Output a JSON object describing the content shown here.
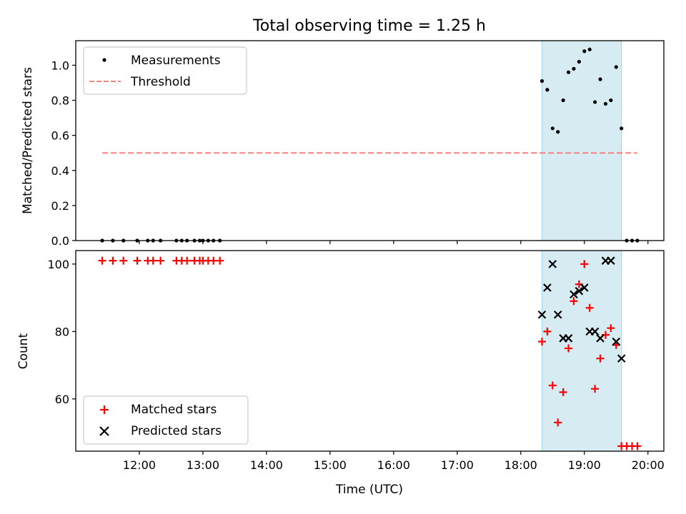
{
  "chart_data": [
    {
      "type": "scatter",
      "title": "Total observing time = 1.25 h",
      "xlabel": "",
      "ylabel": "Matched/Predicted stars",
      "x_unit": "hours UTC",
      "xlim": [
        "11:00",
        "20:15"
      ],
      "ylim": [
        0,
        1.14
      ],
      "yticks": [
        "0.0",
        "0.2",
        "0.4",
        "0.6",
        "0.8",
        "1.0"
      ],
      "highlight_span": {
        "from": "18:20",
        "to": "19:35",
        "color": "#add8e6"
      },
      "threshold": {
        "name": "Threshold",
        "value": 0.5,
        "from": "11:25",
        "to": "19:50",
        "color": "#ff7f7f"
      },
      "legend": {
        "placement": "upper-left",
        "entries": [
          "Measurements",
          "Threshold"
        ]
      },
      "series": [
        {
          "name": "Measurements",
          "marker": "dot",
          "color": "#000000",
          "points": [
            [
              "11:25",
              0
            ],
            [
              "11:35",
              0
            ],
            [
              "11:45",
              0
            ],
            [
              "11:58",
              0
            ],
            [
              "12:08",
              0
            ],
            [
              "12:13",
              0
            ],
            [
              "12:20",
              0
            ],
            [
              "12:35",
              0
            ],
            [
              "12:40",
              0
            ],
            [
              "12:45",
              0
            ],
            [
              "12:52",
              0
            ],
            [
              "12:57",
              0
            ],
            [
              "13:00",
              0
            ],
            [
              "13:05",
              0
            ],
            [
              "13:10",
              0
            ],
            [
              "13:16",
              0
            ],
            [
              "18:20",
              0.91
            ],
            [
              "18:25",
              0.86
            ],
            [
              "18:30",
              0.64
            ],
            [
              "18:35",
              0.62
            ],
            [
              "18:40",
              0.8
            ],
            [
              "18:45",
              0.96
            ],
            [
              "18:50",
              0.98
            ],
            [
              "18:55",
              1.02
            ],
            [
              "19:00",
              1.08
            ],
            [
              "19:05",
              1.09
            ],
            [
              "19:10",
              0.79
            ],
            [
              "19:15",
              0.92
            ],
            [
              "19:20",
              0.78
            ],
            [
              "19:25",
              0.8
            ],
            [
              "19:30",
              0.99
            ],
            [
              "19:35",
              0.64
            ],
            [
              "19:40",
              0
            ],
            [
              "19:45",
              0
            ],
            [
              "19:50",
              0
            ]
          ]
        }
      ]
    },
    {
      "type": "scatter",
      "title": "",
      "xlabel": "Time (UTC)",
      "ylabel": "Count",
      "xlim": [
        "11:00",
        "20:15"
      ],
      "ylim": [
        44.5,
        104
      ],
      "xticks": [
        "12:00",
        "13:00",
        "14:00",
        "15:00",
        "16:00",
        "17:00",
        "18:00",
        "19:00",
        "20:00"
      ],
      "yticks": [
        "60",
        "80",
        "100"
      ],
      "highlight_span": {
        "from": "18:20",
        "to": "19:35",
        "color": "#add8e6"
      },
      "legend": {
        "placement": "lower-left",
        "entries": [
          "Matched stars",
          "Predicted stars"
        ]
      },
      "series": [
        {
          "name": "Matched stars",
          "marker": "plus",
          "color": "#ff0000",
          "points": [
            [
              "11:25",
              101
            ],
            [
              "11:35",
              101
            ],
            [
              "11:45",
              101
            ],
            [
              "11:58",
              101
            ],
            [
              "12:08",
              101
            ],
            [
              "12:13",
              101
            ],
            [
              "12:20",
              101
            ],
            [
              "12:35",
              101
            ],
            [
              "12:40",
              101
            ],
            [
              "12:45",
              101
            ],
            [
              "12:52",
              101
            ],
            [
              "12:57",
              101
            ],
            [
              "13:00",
              101
            ],
            [
              "13:05",
              101
            ],
            [
              "13:10",
              101
            ],
            [
              "13:16",
              101
            ],
            [
              "18:20",
              77
            ],
            [
              "18:25",
              80
            ],
            [
              "18:30",
              64
            ],
            [
              "18:35",
              53
            ],
            [
              "18:40",
              62
            ],
            [
              "18:45",
              75
            ],
            [
              "18:50",
              89
            ],
            [
              "18:55",
              94
            ],
            [
              "19:00",
              100
            ],
            [
              "19:05",
              87
            ],
            [
              "19:10",
              63
            ],
            [
              "19:15",
              72
            ],
            [
              "19:20",
              79
            ],
            [
              "19:25",
              81
            ],
            [
              "19:30",
              76
            ],
            [
              "19:35",
              46
            ],
            [
              "19:40",
              46
            ],
            [
              "19:45",
              46
            ],
            [
              "19:50",
              46
            ]
          ]
        },
        {
          "name": "Predicted stars",
          "marker": "x",
          "color": "#000000",
          "points": [
            [
              "18:20",
              85
            ],
            [
              "18:25",
              93
            ],
            [
              "18:30",
              100
            ],
            [
              "18:35",
              85
            ],
            [
              "18:40",
              78
            ],
            [
              "18:45",
              78
            ],
            [
              "18:50",
              91
            ],
            [
              "18:55",
              92
            ],
            [
              "19:00",
              93
            ],
            [
              "19:05",
              80
            ],
            [
              "19:10",
              80
            ],
            [
              "19:15",
              78
            ],
            [
              "19:20",
              101
            ],
            [
              "19:25",
              101
            ],
            [
              "19:30",
              77
            ],
            [
              "19:35",
              72
            ]
          ]
        }
      ]
    }
  ]
}
